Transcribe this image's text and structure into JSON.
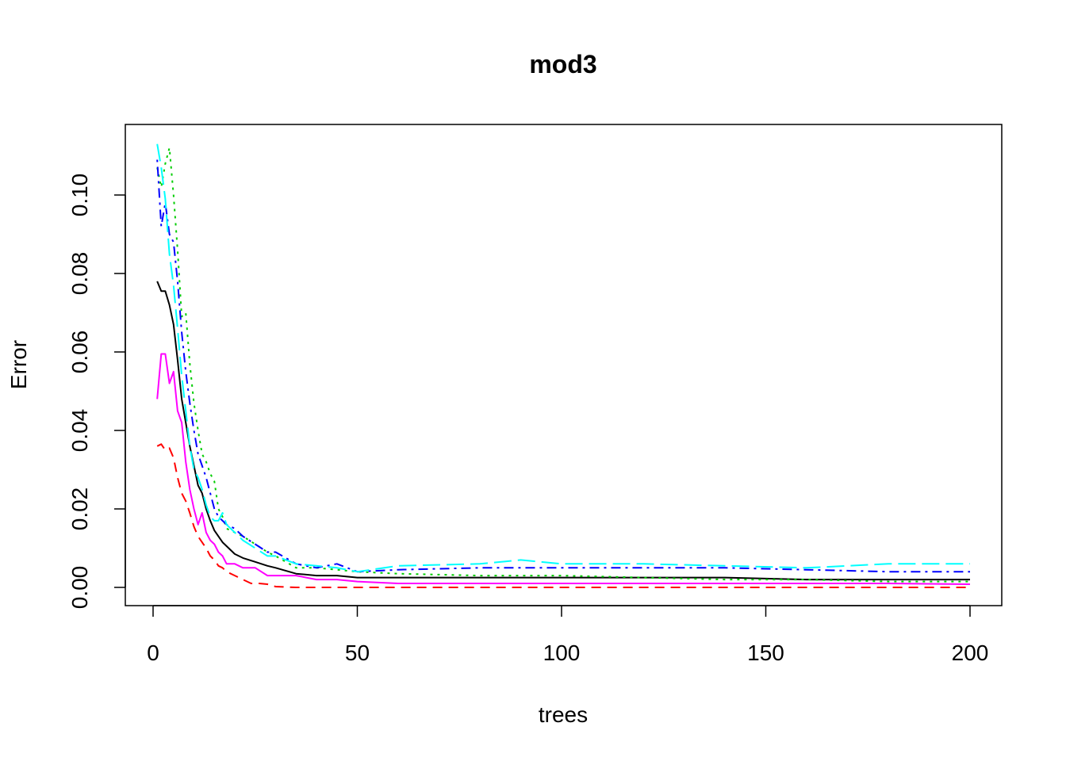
{
  "chart_data": {
    "type": "line",
    "title": "mod3",
    "xlabel": "trees",
    "ylabel": "Error",
    "xlim": [
      0,
      200
    ],
    "ylim": [
      -0.004,
      0.117
    ],
    "xticks": [
      0,
      50,
      100,
      150,
      200
    ],
    "xtick_labels": [
      "0",
      "50",
      "100",
      "150",
      "200"
    ],
    "yticks": [
      0.0,
      0.02,
      0.04,
      0.06,
      0.08,
      0.1
    ],
    "ytick_labels": [
      "0.00",
      "0.02",
      "0.04",
      "0.06",
      "0.08",
      "0.10"
    ],
    "grid": false,
    "legend": "none",
    "series": [
      {
        "color": "#000000",
        "dash": "solid",
        "x": [
          1,
          2,
          3,
          4,
          5,
          6,
          7,
          8,
          9,
          10,
          11,
          12,
          13,
          14,
          15,
          16,
          17,
          18,
          20,
          22,
          25,
          28,
          30,
          35,
          40,
          45,
          50,
          60,
          80,
          100,
          120,
          140,
          160,
          180,
          200
        ],
        "y": [
          0.078,
          0.0755,
          0.0755,
          0.072,
          0.067,
          0.058,
          0.048,
          0.042,
          0.036,
          0.031,
          0.026,
          0.024,
          0.02,
          0.017,
          0.0145,
          0.013,
          0.0115,
          0.0105,
          0.0085,
          0.0075,
          0.0065,
          0.0055,
          0.005,
          0.0035,
          0.003,
          0.003,
          0.0025,
          0.0025,
          0.0025,
          0.0025,
          0.0025,
          0.0025,
          0.002,
          0.002,
          0.002
        ]
      },
      {
        "color": "#ff0000",
        "dash": "dashed",
        "x": [
          1,
          2,
          3,
          4,
          5,
          6,
          7,
          8,
          9,
          10,
          11,
          12,
          13,
          14,
          15,
          16,
          17,
          18,
          20,
          22,
          24,
          26,
          28,
          30,
          35,
          40,
          50,
          60,
          80,
          100,
          120,
          140,
          160,
          180,
          200
        ],
        "y": [
          0.036,
          0.0365,
          0.035,
          0.0355,
          0.033,
          0.028,
          0.024,
          0.022,
          0.019,
          0.0155,
          0.013,
          0.0115,
          0.01,
          0.008,
          0.007,
          0.0055,
          0.005,
          0.004,
          0.003,
          0.002,
          0.001,
          0.001,
          0.0008,
          0.0002,
          0.0,
          0.0,
          0.0,
          0.0,
          0.0,
          0.0,
          0.0,
          0.0,
          0.0,
          0.0,
          0.0
        ]
      },
      {
        "color": "#00cd00",
        "dash": "dotted",
        "x": [
          1,
          2,
          3,
          4,
          5,
          6,
          7,
          8,
          9,
          10,
          11,
          12,
          13,
          14,
          15,
          16,
          17,
          18,
          20,
          22,
          25,
          28,
          30,
          35,
          40,
          45,
          50,
          60,
          80,
          100,
          120,
          140,
          160,
          180,
          200
        ],
        "y": [
          0.107,
          0.102,
          0.108,
          0.112,
          0.1,
          0.086,
          0.069,
          0.07,
          0.057,
          0.047,
          0.04,
          0.034,
          0.032,
          0.029,
          0.027,
          0.02,
          0.018,
          0.015,
          0.014,
          0.013,
          0.011,
          0.009,
          0.008,
          0.005,
          0.005,
          0.0045,
          0.004,
          0.0035,
          0.003,
          0.003,
          0.0025,
          0.002,
          0.002,
          0.0015,
          0.0015
        ]
      },
      {
        "color": "#0000ff",
        "dash": "dotdash",
        "x": [
          1,
          2,
          3,
          4,
          5,
          6,
          7,
          8,
          9,
          10,
          11,
          12,
          13,
          14,
          15,
          16,
          17,
          18,
          20,
          22,
          25,
          28,
          30,
          35,
          40,
          45,
          50,
          60,
          80,
          100,
          120,
          140,
          160,
          180,
          200
        ],
        "y": [
          0.109,
          0.092,
          0.098,
          0.09,
          0.088,
          0.078,
          0.065,
          0.055,
          0.047,
          0.04,
          0.034,
          0.031,
          0.028,
          0.024,
          0.02,
          0.018,
          0.017,
          0.016,
          0.015,
          0.013,
          0.011,
          0.009,
          0.009,
          0.006,
          0.005,
          0.006,
          0.004,
          0.0045,
          0.005,
          0.005,
          0.005,
          0.005,
          0.0045,
          0.004,
          0.004
        ]
      },
      {
        "color": "#00ffff",
        "dash": "longdash",
        "x": [
          1,
          2,
          3,
          4,
          5,
          6,
          7,
          8,
          9,
          10,
          11,
          12,
          13,
          14,
          15,
          16,
          17,
          18,
          20,
          22,
          25,
          28,
          30,
          35,
          40,
          45,
          50,
          60,
          80,
          90,
          100,
          120,
          140,
          160,
          180,
          200
        ],
        "y": [
          0.113,
          0.107,
          0.099,
          0.085,
          0.077,
          0.066,
          0.054,
          0.045,
          0.036,
          0.03,
          0.028,
          0.025,
          0.021,
          0.018,
          0.017,
          0.017,
          0.019,
          0.016,
          0.014,
          0.012,
          0.01,
          0.008,
          0.008,
          0.006,
          0.0055,
          0.005,
          0.004,
          0.0055,
          0.006,
          0.007,
          0.006,
          0.006,
          0.0055,
          0.005,
          0.006,
          0.006
        ]
      },
      {
        "color": "#ff00ff",
        "dash": "solid",
        "x": [
          1,
          2,
          3,
          4,
          5,
          6,
          7,
          8,
          9,
          10,
          11,
          12,
          13,
          14,
          15,
          16,
          17,
          18,
          20,
          22,
          25,
          28,
          30,
          35,
          40,
          45,
          50,
          60,
          80,
          100,
          120,
          140,
          160,
          180,
          200
        ],
        "y": [
          0.048,
          0.0595,
          0.0595,
          0.052,
          0.055,
          0.045,
          0.042,
          0.032,
          0.025,
          0.02,
          0.016,
          0.019,
          0.014,
          0.012,
          0.011,
          0.009,
          0.008,
          0.006,
          0.006,
          0.005,
          0.005,
          0.003,
          0.003,
          0.003,
          0.002,
          0.002,
          0.0015,
          0.001,
          0.001,
          0.001,
          0.001,
          0.001,
          0.001,
          0.001,
          0.0008
        ]
      }
    ]
  }
}
